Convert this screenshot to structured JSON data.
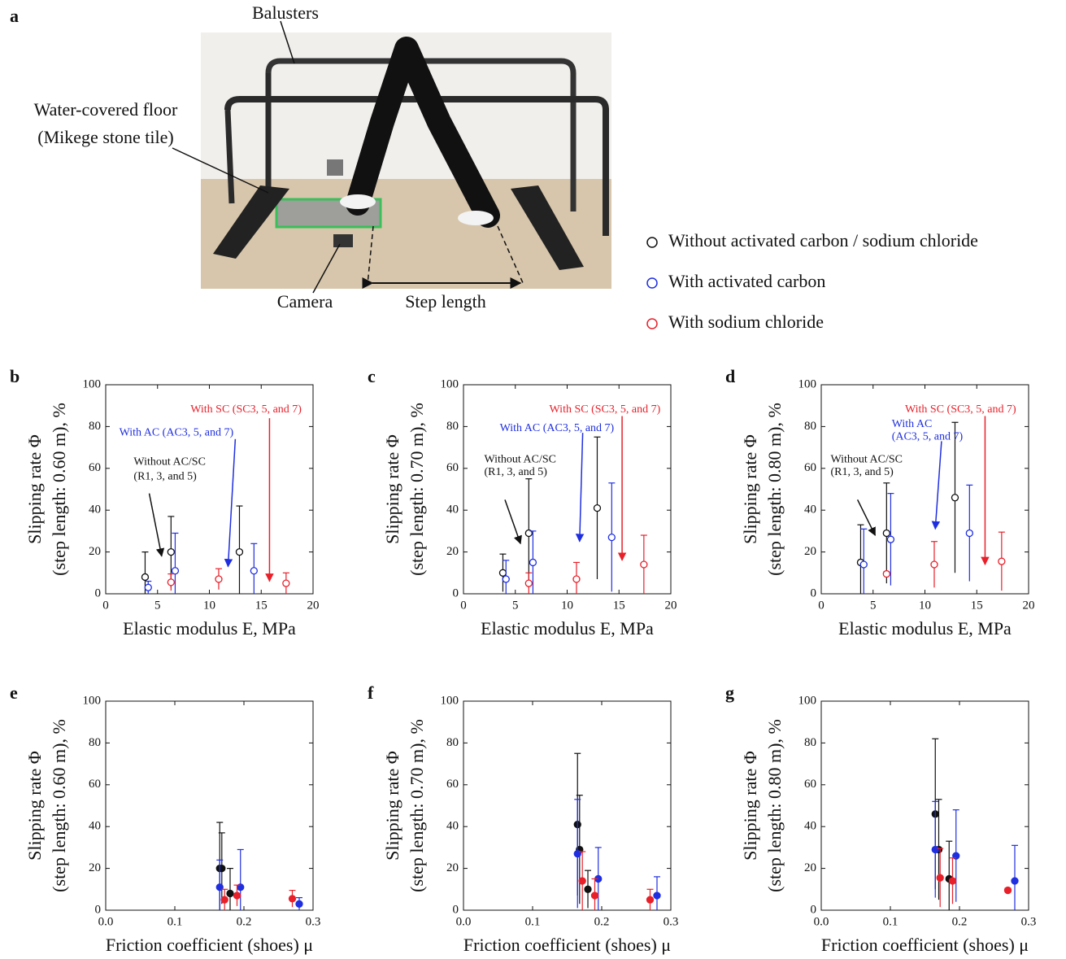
{
  "photo": {
    "panel": "a",
    "labels": [
      "Balusters",
      "Water-covered floor",
      "(Mikege stone tile)",
      "Camera",
      "Step length"
    ]
  },
  "legend": [
    {
      "name": "Without activated carbon / sodium chloride",
      "color": "#111111"
    },
    {
      "name": "With activated carbon",
      "color": "#1f2fe0"
    },
    {
      "name": "With sodium chloride",
      "color": "#e8202a"
    }
  ],
  "chart_data": [
    {
      "type": "scatter",
      "panel": "b",
      "ylabel": [
        "Slipping rate Φ",
        "(step length: 0.60 m), %"
      ],
      "xlabel": "Elastic modulus E, MPa",
      "xlim": [
        0,
        20
      ],
      "xticks": [
        0,
        5,
        10,
        15,
        20
      ],
      "ylim": [
        0,
        100
      ],
      "yticks": [
        0,
        20,
        40,
        60,
        80,
        100
      ],
      "filled": false,
      "series": [
        {
          "color": "#111111",
          "x": [
            3.8,
            6.3,
            12.9
          ],
          "values": [
            8,
            20,
            20
          ],
          "errors": [
            12,
            17,
            22
          ]
        },
        {
          "color": "#1f2fe0",
          "x": [
            4.1,
            6.7,
            14.3
          ],
          "values": [
            3,
            11,
            11
          ],
          "errors": [
            3,
            18,
            13
          ]
        },
        {
          "color": "#e8202a",
          "x": [
            6.3,
            10.9,
            17.4
          ],
          "values": [
            5.5,
            7,
            5
          ],
          "errors": [
            4,
            5,
            5
          ]
        }
      ],
      "annotations": [
        {
          "text": "With SC (SC3, 5, and 7)",
          "color": "#e8202a"
        },
        {
          "text": "With AC (AC3, 5, and 7)",
          "color": "#1f2fe0"
        },
        {
          "text": "Without AC/SC",
          "color": "#111111"
        },
        {
          "text": "(R1, 3, and 5)",
          "color": "#111111"
        }
      ]
    },
    {
      "type": "scatter",
      "panel": "c",
      "ylabel": [
        "Slipping rate Φ",
        "(step length: 0.70 m), %"
      ],
      "xlabel": "Elastic modulus E, MPa",
      "xlim": [
        0,
        20
      ],
      "xticks": [
        0,
        5,
        10,
        15,
        20
      ],
      "ylim": [
        0,
        100
      ],
      "yticks": [
        0,
        20,
        40,
        60,
        80,
        100
      ],
      "filled": false,
      "series": [
        {
          "color": "#111111",
          "x": [
            3.8,
            6.3,
            12.9
          ],
          "values": [
            10,
            29,
            41
          ],
          "errors": [
            9,
            26,
            34
          ]
        },
        {
          "color": "#1f2fe0",
          "x": [
            4.1,
            6.7,
            14.3
          ],
          "values": [
            7,
            15,
            27
          ],
          "errors": [
            9,
            15,
            26
          ]
        },
        {
          "color": "#e8202a",
          "x": [
            6.3,
            10.9,
            17.4
          ],
          "values": [
            5,
            7,
            14
          ],
          "errors": [
            5,
            8,
            14
          ]
        }
      ],
      "annotations": [
        {
          "text": "With SC (SC3, 5, and 7)",
          "color": "#e8202a"
        },
        {
          "text": "With AC (AC3, 5, and 7)",
          "color": "#1f2fe0"
        },
        {
          "text": "Without AC/SC",
          "color": "#111111"
        },
        {
          "text": "(R1, 3, and 5)",
          "color": "#111111"
        }
      ]
    },
    {
      "type": "scatter",
      "panel": "d",
      "ylabel": [
        "Slipping rate Φ",
        "(step length: 0.80 m), %"
      ],
      "xlabel": "Elastic modulus E, MPa",
      "xlim": [
        0,
        20
      ],
      "xticks": [
        0,
        5,
        10,
        15,
        20
      ],
      "ylim": [
        0,
        100
      ],
      "yticks": [
        0,
        20,
        40,
        60,
        80,
        100
      ],
      "filled": false,
      "series": [
        {
          "color": "#111111",
          "x": [
            3.8,
            6.3,
            12.9
          ],
          "values": [
            15,
            29,
            46
          ],
          "errors": [
            18,
            24,
            36
          ]
        },
        {
          "color": "#1f2fe0",
          "x": [
            4.1,
            6.7,
            14.3
          ],
          "values": [
            14,
            26,
            29
          ],
          "errors": [
            17,
            22,
            23
          ]
        },
        {
          "color": "#e8202a",
          "x": [
            6.3,
            10.9,
            17.4
          ],
          "values": [
            9.5,
            14,
            15.5
          ],
          "errors": [
            1,
            11,
            14
          ]
        }
      ],
      "annotations": [
        {
          "text": "With SC (SC3, 5, and 7)",
          "color": "#e8202a"
        },
        {
          "text": "With AC",
          "color": "#1f2fe0"
        },
        {
          "text": "(AC3, 5, and 7)",
          "color": "#1f2fe0"
        },
        {
          "text": "Without AC/SC",
          "color": "#111111"
        },
        {
          "text": "(R1, 3, and 5)",
          "color": "#111111"
        }
      ]
    },
    {
      "type": "scatter",
      "panel": "e",
      "ylabel": [
        "Slipping rate Φ",
        "(step length: 0.60 m), %"
      ],
      "xlabel": "Friction coefficient (shoes) μ",
      "xlim": [
        0,
        0.3
      ],
      "xticks": [
        {
          "value": 0,
          "label": "0.0"
        },
        0.1,
        0.2,
        0.3
      ],
      "ylim": [
        0,
        100
      ],
      "yticks": [
        0,
        20,
        40,
        60,
        80,
        100
      ],
      "filled": true,
      "series": [
        {
          "color": "#111111",
          "x": [
            0.18,
            0.168,
            0.165
          ],
          "values": [
            8,
            20,
            20
          ],
          "errors": [
            12,
            17,
            22
          ]
        },
        {
          "color": "#1f2fe0",
          "x": [
            0.28,
            0.195,
            0.165
          ],
          "values": [
            3,
            11,
            11
          ],
          "errors": [
            3,
            18,
            13
          ]
        },
        {
          "color": "#e8202a",
          "x": [
            0.27,
            0.19,
            0.172
          ],
          "values": [
            5.5,
            7,
            5
          ],
          "errors": [
            4,
            5,
            5
          ]
        }
      ],
      "annotations": []
    },
    {
      "type": "scatter",
      "panel": "f",
      "ylabel": [
        "Slipping rate Φ",
        "(step length: 0.70 m), %"
      ],
      "xlabel": "Friction coefficient (shoes) μ",
      "xlim": [
        0,
        0.3
      ],
      "xticks": [
        {
          "value": 0,
          "label": "0.0"
        },
        0.1,
        0.2,
        0.3
      ],
      "ylim": [
        0,
        100
      ],
      "yticks": [
        0,
        20,
        40,
        60,
        80,
        100
      ],
      "filled": true,
      "series": [
        {
          "color": "#111111",
          "x": [
            0.18,
            0.168,
            0.165
          ],
          "values": [
            10,
            29,
            41
          ],
          "errors": [
            9,
            26,
            34
          ]
        },
        {
          "color": "#1f2fe0",
          "x": [
            0.28,
            0.195,
            0.165
          ],
          "values": [
            7,
            15,
            27
          ],
          "errors": [
            9,
            15,
            26
          ]
        },
        {
          "color": "#e8202a",
          "x": [
            0.27,
            0.19,
            0.172
          ],
          "values": [
            5,
            7,
            14
          ],
          "errors": [
            5,
            8,
            14
          ]
        }
      ],
      "annotations": []
    },
    {
      "type": "scatter",
      "panel": "g",
      "ylabel": [
        "Slipping rate Φ",
        "(step length: 0.80 m), %"
      ],
      "xlabel": "Friction coefficient (shoes) μ",
      "xlim": [
        0,
        0.3
      ],
      "xticks": [
        {
          "value": 0,
          "label": "0.0"
        },
        0.1,
        0.2,
        0.3
      ],
      "ylim": [
        0,
        100
      ],
      "yticks": [
        0,
        20,
        40,
        60,
        80,
        100
      ],
      "filled": true,
      "series": [
        {
          "color": "#111111",
          "x": [
            0.185,
            0.17,
            0.165
          ],
          "values": [
            15,
            29,
            46
          ],
          "errors": [
            18,
            24,
            36
          ]
        },
        {
          "color": "#1f2fe0",
          "x": [
            0.28,
            0.195,
            0.165
          ],
          "values": [
            14,
            26,
            29
          ],
          "errors": [
            17,
            22,
            23
          ]
        },
        {
          "color": "#e8202a",
          "x": [
            0.27,
            0.19,
            0.172
          ],
          "values": [
            9.5,
            14,
            15.5
          ],
          "errors": [
            1,
            11,
            14
          ]
        }
      ],
      "annotations": []
    }
  ]
}
